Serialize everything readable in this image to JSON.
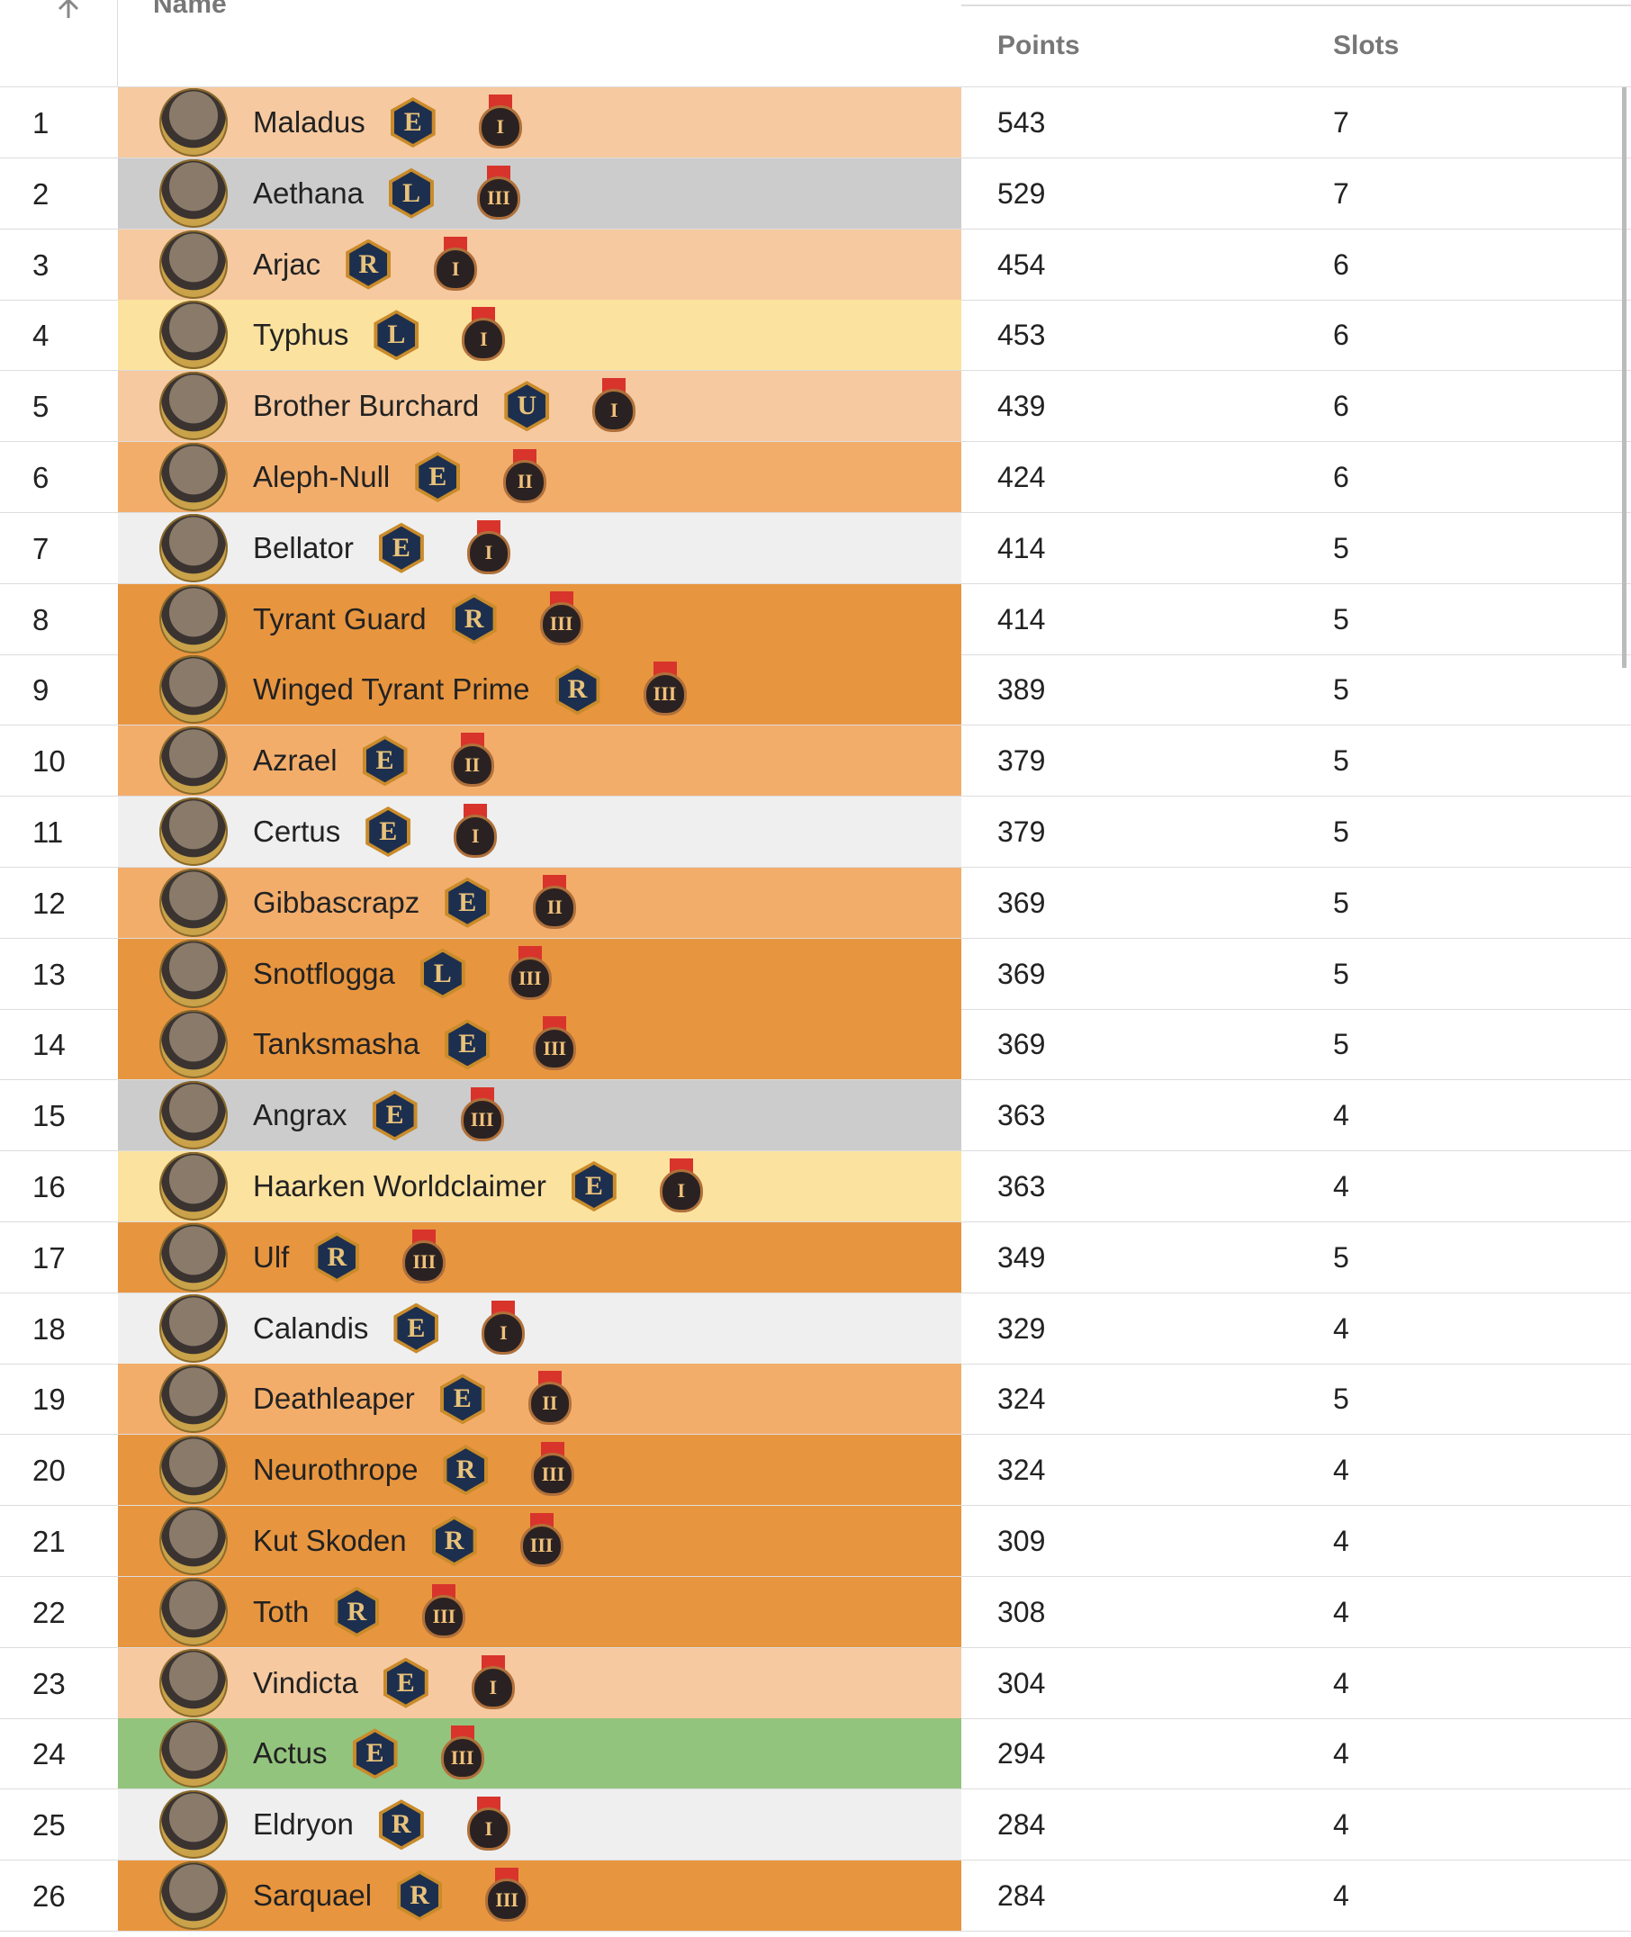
{
  "header": {
    "name": "Name",
    "points": "Points",
    "slots": "Slots"
  },
  "table": {
    "rows": [
      {
        "rank": "1",
        "name": "Maladus",
        "rarity": "E",
        "tier": "I",
        "points": "543",
        "slots": "7",
        "color": "#f6c9a0"
      },
      {
        "rank": "2",
        "name": "Aethana",
        "rarity": "L",
        "tier": "III",
        "points": "529",
        "slots": "7",
        "color": "#cccccc"
      },
      {
        "rank": "3",
        "name": "Arjac",
        "rarity": "R",
        "tier": "I",
        "points": "454",
        "slots": "6",
        "color": "#f6c9a0"
      },
      {
        "rank": "4",
        "name": "Typhus",
        "rarity": "L",
        "tier": "I",
        "points": "453",
        "slots": "6",
        "color": "#fce29f"
      },
      {
        "rank": "5",
        "name": "Brother Burchard",
        "rarity": "U",
        "tier": "I",
        "points": "439",
        "slots": "6",
        "color": "#f6c9a0"
      },
      {
        "rank": "6",
        "name": "Aleph-Null",
        "rarity": "E",
        "tier": "II",
        "points": "424",
        "slots": "6",
        "color": "#f3ad6b"
      },
      {
        "rank": "7",
        "name": "Bellator",
        "rarity": "E",
        "tier": "I",
        "points": "414",
        "slots": "5",
        "color": "#efefef"
      },
      {
        "rank": "8",
        "name": "Tyrant Guard",
        "rarity": "R",
        "tier": "III",
        "points": "414",
        "slots": "5",
        "color": "#e8953f"
      },
      {
        "rank": "9",
        "name": "Winged Tyrant Prime",
        "rarity": "R",
        "tier": "III",
        "points": "389",
        "slots": "5",
        "color": "#e8953f"
      },
      {
        "rank": "10",
        "name": "Azrael",
        "rarity": "E",
        "tier": "II",
        "points": "379",
        "slots": "5",
        "color": "#f3ad6b"
      },
      {
        "rank": "11",
        "name": "Certus",
        "rarity": "E",
        "tier": "I",
        "points": "379",
        "slots": "5",
        "color": "#efefef"
      },
      {
        "rank": "12",
        "name": "Gibbascrapz",
        "rarity": "E",
        "tier": "II",
        "points": "369",
        "slots": "5",
        "color": "#f3ad6b"
      },
      {
        "rank": "13",
        "name": "Snotflogga",
        "rarity": "L",
        "tier": "III",
        "points": "369",
        "slots": "5",
        "color": "#e8953f"
      },
      {
        "rank": "14",
        "name": "Tanksmasha",
        "rarity": "E",
        "tier": "III",
        "points": "369",
        "slots": "5",
        "color": "#e8953f"
      },
      {
        "rank": "15",
        "name": "Angrax",
        "rarity": "E",
        "tier": "III",
        "points": "363",
        "slots": "4",
        "color": "#cccccc"
      },
      {
        "rank": "16",
        "name": "Haarken Worldclaimer",
        "rarity": "E",
        "tier": "I",
        "points": "363",
        "slots": "4",
        "color": "#fce29f"
      },
      {
        "rank": "17",
        "name": "Ulf",
        "rarity": "R",
        "tier": "III",
        "points": "349",
        "slots": "5",
        "color": "#e8953f"
      },
      {
        "rank": "18",
        "name": "Calandis",
        "rarity": "E",
        "tier": "I",
        "points": "329",
        "slots": "4",
        "color": "#efefef"
      },
      {
        "rank": "19",
        "name": "Deathleaper",
        "rarity": "E",
        "tier": "II",
        "points": "324",
        "slots": "5",
        "color": "#f3ad6b"
      },
      {
        "rank": "20",
        "name": "Neurothrope",
        "rarity": "R",
        "tier": "III",
        "points": "324",
        "slots": "4",
        "color": "#e8953f"
      },
      {
        "rank": "21",
        "name": "Kut Skoden",
        "rarity": "R",
        "tier": "III",
        "points": "309",
        "slots": "4",
        "color": "#e8953f"
      },
      {
        "rank": "22",
        "name": "Toth",
        "rarity": "R",
        "tier": "III",
        "points": "308",
        "slots": "4",
        "color": "#e8953f"
      },
      {
        "rank": "23",
        "name": "Vindicta",
        "rarity": "E",
        "tier": "I",
        "points": "304",
        "slots": "4",
        "color": "#f6c9a0"
      },
      {
        "rank": "24",
        "name": "Actus",
        "rarity": "E",
        "tier": "III",
        "points": "294",
        "slots": "4",
        "color": "#93c47d"
      },
      {
        "rank": "25",
        "name": "Eldryon",
        "rarity": "R",
        "tier": "I",
        "points": "284",
        "slots": "4",
        "color": "#efefef"
      },
      {
        "rank": "26",
        "name": "Sarquael",
        "rarity": "R",
        "tier": "III",
        "points": "284",
        "slots": "4",
        "color": "#e8953f"
      }
    ]
  }
}
